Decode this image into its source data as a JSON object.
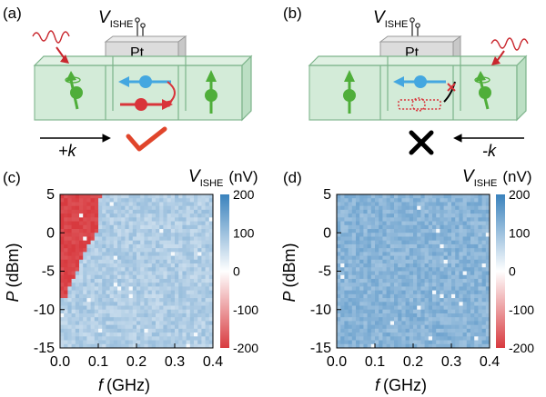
{
  "schematic": {
    "panel_a": {
      "label": "(a)",
      "v_main": "V",
      "v_sub": "ISHE",
      "pt": "Pt",
      "k_label": "+k"
    },
    "panel_b": {
      "label": "(b)",
      "v_main": "V",
      "v_sub": "ISHE",
      "pt": "Pt",
      "k_label": "-k"
    }
  },
  "colors": {
    "box_fill": "#cfe9d4",
    "box_edge": "#7cb38a",
    "pt_fill": "#dcdcdc",
    "spin_green": "#4fae3a",
    "spin_blue": "#44a7e0",
    "spin_red": "#d9343a",
    "check_red": "#e0452b",
    "wave_red": "#c9272e",
    "heat_red": "#e0565c",
    "heat_blue": "#b4d6ee"
  },
  "chart_data": [
    {
      "type": "heatmap",
      "panel": "(c)",
      "title": "",
      "colorbar_label": {
        "main": "V",
        "sub": "ISHE",
        "unit": "(nV)"
      },
      "xlabel": {
        "var": "f",
        "unit": "(GHz)"
      },
      "ylabel": {
        "var": "P",
        "unit": "(dBm)"
      },
      "xlim": [
        0.0,
        0.4
      ],
      "ylim": [
        -15,
        5
      ],
      "xticks": [
        "0.0",
        "0.1",
        "0.2",
        "0.3",
        "0.4"
      ],
      "yticks": [
        "5",
        "0",
        "-5",
        "-10",
        "-15"
      ],
      "clim": [
        -200,
        200
      ],
      "cticks": [
        "200",
        "100",
        "0",
        "-100",
        "-200"
      ],
      "grid_cols": 40,
      "grid_rows": 40,
      "background_value": 80,
      "negative_region": {
        "value": -190,
        "boundary_f_ghz_by_power": [
          {
            "p": 5,
            "f": 0.12
          },
          {
            "p": 4.5,
            "f": 0.105
          },
          {
            "p": 4,
            "f": 0.105
          },
          {
            "p": 3,
            "f": 0.1
          },
          {
            "p": 2,
            "f": 0.1
          },
          {
            "p": 0,
            "f": 0.095
          },
          {
            "p": -1,
            "f": 0.085
          },
          {
            "p": -2,
            "f": 0.07
          },
          {
            "p": -3,
            "f": 0.06
          },
          {
            "p": -4,
            "f": 0.05
          },
          {
            "p": -5,
            "f": 0.045
          },
          {
            "p": -6,
            "f": 0.035
          },
          {
            "p": -7,
            "f": 0.025
          },
          {
            "p": -8,
            "f": 0.02
          },
          {
            "p": -8.5,
            "f": 0.015
          }
        ]
      }
    },
    {
      "type": "heatmap",
      "panel": "(d)",
      "title": "",
      "colorbar_label": {
        "main": "V",
        "sub": "ISHE",
        "unit": "(nV)"
      },
      "xlabel": {
        "var": "f",
        "unit": "(GHz)"
      },
      "ylabel": {
        "var": "P",
        "unit": "(dBm)"
      },
      "xlim": [
        0.0,
        0.4
      ],
      "ylim": [
        -15,
        5
      ],
      "xticks": [
        "0.0",
        "0.1",
        "0.2",
        "0.3",
        "0.4"
      ],
      "yticks": [
        "5",
        "0",
        "-5",
        "-10",
        "-15"
      ],
      "clim": [
        -200,
        200
      ],
      "cticks": [
        "200",
        "100",
        "0",
        "-100",
        "-200"
      ],
      "grid_cols": 40,
      "grid_rows": 40,
      "background_value": 120,
      "negative_region": null
    }
  ]
}
